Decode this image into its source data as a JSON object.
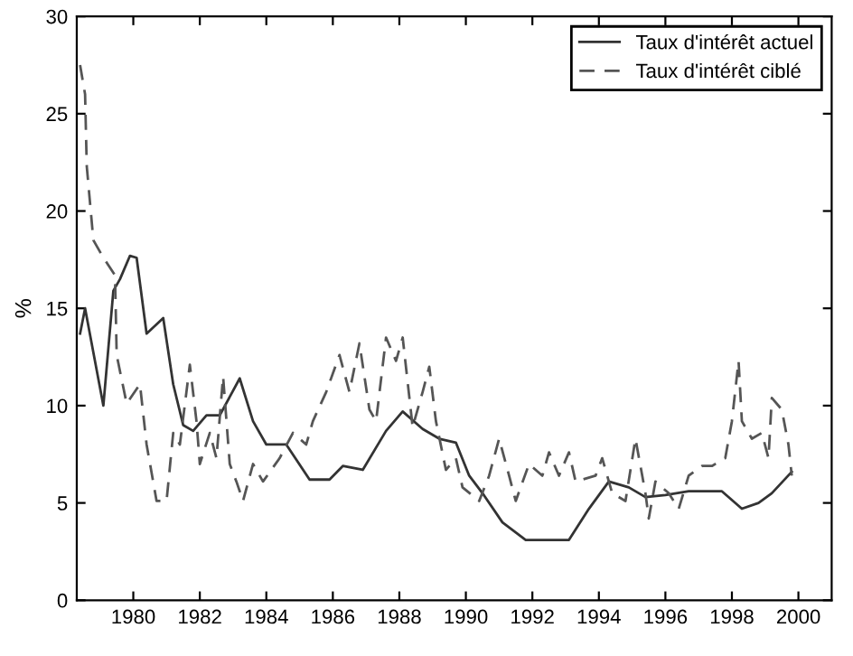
{
  "chart_data": {
    "type": "line",
    "ylabel": "%",
    "xlim": [
      1978.3,
      2001
    ],
    "ylim": [
      0,
      30
    ],
    "xticks": [
      1980,
      1982,
      1984,
      1986,
      1988,
      1990,
      1992,
      1994,
      1996,
      1998,
      2000
    ],
    "yticks": [
      0,
      5,
      10,
      15,
      20,
      25,
      30
    ],
    "legend": "top right",
    "grid": false,
    "marker": "none",
    "series": [
      {
        "name": "Taux d'intérêt actuel",
        "color": "#333333",
        "line_style": "solid",
        "x": [
          1978.4,
          1978.55,
          1979.1,
          1979.4,
          1979.6,
          1979.9,
          1980.1,
          1980.4,
          1980.9,
          1981.2,
          1981.5,
          1981.8,
          1982.2,
          1982.6,
          1983.2,
          1983.6,
          1984.0,
          1984.6,
          1985.3,
          1985.9,
          1986.3,
          1986.9,
          1987.6,
          1988.1,
          1988.7,
          1989.2,
          1989.7,
          1990.1,
          1990.5,
          1991.1,
          1991.8,
          1993.1,
          1993.7,
          1994.3,
          1994.9,
          1995.4,
          1996.0,
          1996.7,
          1997.7,
          1998.3,
          1998.8,
          1999.2,
          1999.8
        ],
        "values": [
          13.7,
          15.0,
          10.0,
          15.9,
          16.5,
          17.7,
          17.6,
          13.7,
          14.5,
          11.1,
          9.0,
          8.7,
          9.5,
          9.5,
          11.4,
          9.2,
          8.0,
          8.0,
          6.2,
          6.2,
          6.9,
          6.7,
          8.7,
          9.7,
          8.8,
          8.3,
          8.1,
          6.4,
          5.5,
          4.0,
          3.1,
          3.1,
          4.7,
          6.1,
          5.8,
          5.3,
          5.4,
          5.6,
          5.6,
          4.7,
          5.0,
          5.5,
          6.6
        ]
      },
      {
        "name": "Taux d'intérêt ciblé",
        "color": "#555555",
        "line_style": "dashed",
        "x": [
          1978.4,
          1978.55,
          1978.6,
          1978.8,
          1979.1,
          1979.45,
          1979.5,
          1979.8,
          1980.2,
          1980.4,
          1980.7,
          1981.0,
          1981.2,
          1981.4,
          1981.7,
          1981.9,
          1982.0,
          1982.3,
          1982.5,
          1982.7,
          1982.9,
          1983.1,
          1983.3,
          1983.6,
          1983.9,
          1984.4,
          1984.8,
          1985.2,
          1985.4,
          1985.8,
          1986.2,
          1986.5,
          1986.8,
          1987.1,
          1987.3,
          1987.6,
          1987.9,
          1988.1,
          1988.4,
          1988.7,
          1988.9,
          1989.1,
          1989.4,
          1989.7,
          1989.9,
          1990.4,
          1990.7,
          1991.0,
          1991.3,
          1991.5,
          1991.9,
          1992.3,
          1992.5,
          1992.8,
          1993.1,
          1993.3,
          1993.9,
          1994.1,
          1994.4,
          1994.8,
          1995.1,
          1995.4,
          1995.5,
          1995.7,
          1996.1,
          1996.4,
          1996.7,
          1997.1,
          1997.4,
          1997.8,
          1998.0,
          1998.2,
          1998.3,
          1998.6,
          1998.9,
          1999.1,
          1999.2,
          1999.5,
          1999.7,
          1999.8
        ],
        "values": [
          27.5,
          26.0,
          22.3,
          18.5,
          17.6,
          16.7,
          12.6,
          10.1,
          11.1,
          8.0,
          5.1,
          5.1,
          8.6,
          8.0,
          12.1,
          9.2,
          7.0,
          8.6,
          7.3,
          11.5,
          7.0,
          6.1,
          5.1,
          7.0,
          6.1,
          7.3,
          8.6,
          8.0,
          9.2,
          10.7,
          12.6,
          10.7,
          13.2,
          9.8,
          9.2,
          13.5,
          12.3,
          13.5,
          8.9,
          10.7,
          12.0,
          9.2,
          6.7,
          7.3,
          5.8,
          5.1,
          6.4,
          8.3,
          6.4,
          5.1,
          7.0,
          6.4,
          7.6,
          6.4,
          7.6,
          6.1,
          6.4,
          7.3,
          5.5,
          5.1,
          8.3,
          5.5,
          4.2,
          6.1,
          5.5,
          4.7,
          6.4,
          6.9,
          6.9,
          7.3,
          9.2,
          12.3,
          9.2,
          8.3,
          8.6,
          7.3,
          10.4,
          9.8,
          8.0,
          6.4
        ]
      }
    ]
  }
}
